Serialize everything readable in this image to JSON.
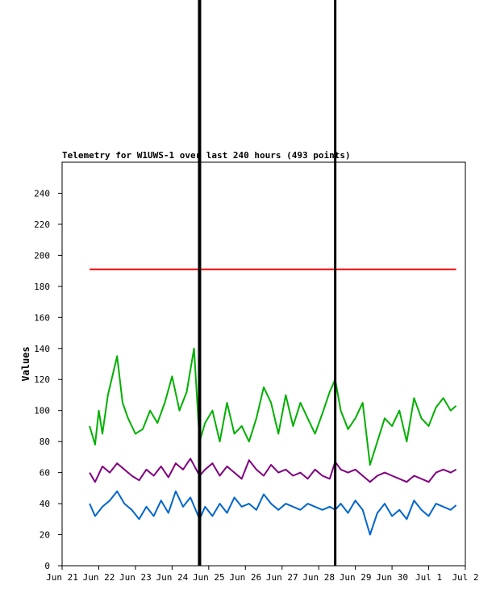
{
  "chart_data": {
    "type": "line",
    "title": "Telemetry for W1UWS-1 over last 240 hours (493 points)",
    "xlabel": "",
    "ylabel": "Values",
    "ylim": [
      0,
      260
    ],
    "yticks": [
      0,
      20,
      40,
      60,
      80,
      100,
      120,
      140,
      160,
      180,
      200,
      220,
      240
    ],
    "xlim": [
      0,
      11
    ],
    "xtick_labels": [
      "Jun 21",
      "Jun 22",
      "Jun 23",
      "Jun 24",
      "Jun 25",
      "Jun 26",
      "Jun 27",
      "Jun 28",
      "Jun 29",
      "Jun 30",
      "Jul 1",
      "Jul 2"
    ],
    "grid": false,
    "legend": "none",
    "vertical_lines_x": [
      3.75,
      7.45
    ],
    "series": [
      {
        "color": "#ff0000",
        "x": [
          0.75,
          1.5,
          2.5,
          3.5,
          4.5,
          5.5,
          6.5,
          7.5,
          8.5,
          9.5,
          10.75
        ],
        "values": [
          191,
          191,
          191,
          191,
          191,
          191,
          191,
          191,
          191,
          191,
          191
        ]
      },
      {
        "color": "#00b000",
        "x": [
          0.75,
          0.9,
          1.0,
          1.1,
          1.25,
          1.5,
          1.65,
          1.8,
          2.0,
          2.2,
          2.4,
          2.6,
          2.8,
          3.0,
          3.2,
          3.4,
          3.6,
          3.75,
          3.9,
          4.1,
          4.3,
          4.5,
          4.7,
          4.9,
          5.1,
          5.3,
          5.5,
          5.7,
          5.9,
          6.1,
          6.3,
          6.5,
          6.7,
          6.9,
          7.1,
          7.3,
          7.45,
          7.6,
          7.8,
          8.0,
          8.2,
          8.4,
          8.6,
          8.8,
          9.0,
          9.2,
          9.4,
          9.6,
          9.8,
          10.0,
          10.2,
          10.4,
          10.6,
          10.75
        ],
        "values": [
          90,
          78,
          100,
          85,
          110,
          135,
          105,
          95,
          85,
          88,
          100,
          92,
          105,
          122,
          100,
          112,
          140,
          80,
          92,
          100,
          80,
          105,
          85,
          90,
          80,
          95,
          115,
          105,
          85,
          110,
          90,
          105,
          95,
          85,
          98,
          112,
          120,
          100,
          88,
          95,
          105,
          65,
          80,
          95,
          90,
          100,
          80,
          108,
          95,
          90,
          102,
          108,
          100,
          103
        ]
      },
      {
        "color": "#800080",
        "x": [
          0.75,
          0.9,
          1.1,
          1.3,
          1.5,
          1.7,
          1.9,
          2.1,
          2.3,
          2.5,
          2.7,
          2.9,
          3.1,
          3.3,
          3.5,
          3.75,
          3.9,
          4.1,
          4.3,
          4.5,
          4.7,
          4.9,
          5.1,
          5.3,
          5.5,
          5.7,
          5.9,
          6.1,
          6.3,
          6.5,
          6.7,
          6.9,
          7.1,
          7.3,
          7.45,
          7.6,
          7.8,
          8.0,
          8.2,
          8.4,
          8.6,
          8.8,
          9.0,
          9.2,
          9.4,
          9.6,
          9.8,
          10.0,
          10.2,
          10.4,
          10.6,
          10.75
        ],
        "values": [
          60,
          54,
          64,
          60,
          66,
          62,
          58,
          55,
          62,
          58,
          64,
          57,
          66,
          62,
          69,
          58,
          62,
          66,
          58,
          64,
          60,
          56,
          68,
          62,
          58,
          65,
          60,
          62,
          58,
          60,
          56,
          62,
          58,
          56,
          67,
          62,
          60,
          62,
          58,
          54,
          58,
          60,
          58,
          56,
          54,
          58,
          56,
          54,
          60,
          62,
          60,
          62
        ]
      },
      {
        "color": "#0066cc",
        "x": [
          0.75,
          0.9,
          1.1,
          1.3,
          1.5,
          1.7,
          1.9,
          2.1,
          2.3,
          2.5,
          2.7,
          2.9,
          3.1,
          3.3,
          3.5,
          3.75,
          3.9,
          4.1,
          4.3,
          4.5,
          4.7,
          4.9,
          5.1,
          5.3,
          5.5,
          5.7,
          5.9,
          6.1,
          6.3,
          6.5,
          6.7,
          6.9,
          7.1,
          7.3,
          7.45,
          7.6,
          7.8,
          8.0,
          8.2,
          8.4,
          8.6,
          8.8,
          9.0,
          9.2,
          9.4,
          9.6,
          9.8,
          10.0,
          10.2,
          10.4,
          10.6,
          10.75
        ],
        "values": [
          40,
          32,
          38,
          42,
          48,
          40,
          36,
          30,
          38,
          32,
          42,
          34,
          48,
          38,
          44,
          30,
          38,
          32,
          40,
          34,
          44,
          38,
          40,
          36,
          46,
          40,
          36,
          40,
          38,
          36,
          40,
          38,
          36,
          38,
          36,
          40,
          34,
          42,
          36,
          20,
          34,
          40,
          32,
          36,
          30,
          42,
          36,
          32,
          40,
          38,
          36,
          39
        ]
      }
    ]
  }
}
